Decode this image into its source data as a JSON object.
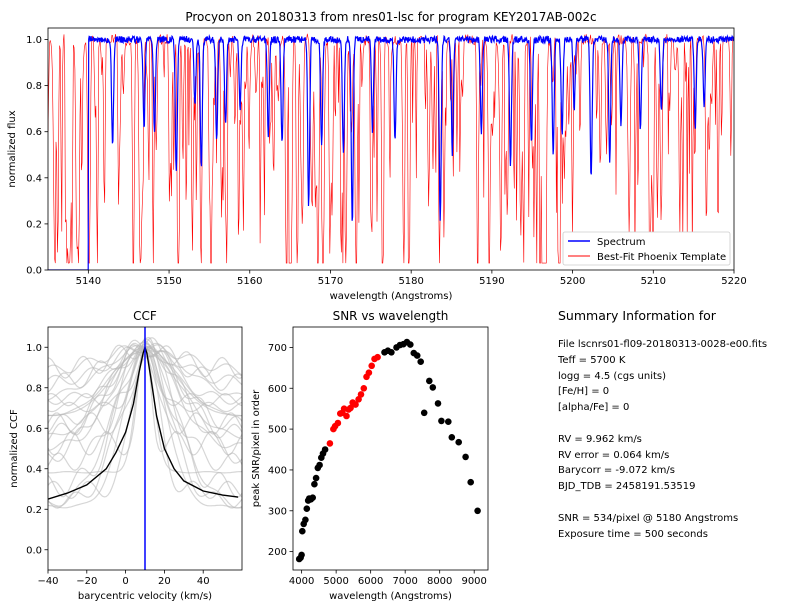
{
  "chart_data": [
    {
      "type": "line",
      "title": "Procyon on 20180313 from nres01-lsc for program KEY2017AB-002c",
      "xlabel": "wavelength (Angstroms)",
      "ylabel": "normalized flux",
      "xlim": [
        5135,
        5220
      ],
      "ylim": [
        0.0,
        1.05
      ],
      "xticks": [
        "5140",
        "5150",
        "5160",
        "5170",
        "5180",
        "5190",
        "5200",
        "5210",
        "5220"
      ],
      "yticks": [
        "0.0",
        "0.2",
        "0.4",
        "0.6",
        "0.8",
        "1.0"
      ],
      "legend_position": "lower-right",
      "series": [
        {
          "name": "Spectrum",
          "color": "#0000ff",
          "notes_data": "flux 0 for wavelength < 5140, ~1.0 continuum with absorption lines",
          "lines": [
            [
              5143.0,
              0.55
            ],
            [
              5146.9,
              0.62
            ],
            [
              5148.2,
              0.6
            ],
            [
              5150.9,
              0.42
            ],
            [
              5153.2,
              0.72
            ],
            [
              5154.0,
              0.45
            ],
            [
              5155.9,
              0.55
            ],
            [
              5157.0,
              0.62
            ],
            [
              5158.8,
              0.7
            ],
            [
              5162.3,
              0.58
            ],
            [
              5164.0,
              0.55
            ],
            [
              5167.3,
              0.28
            ],
            [
              5168.9,
              0.55
            ],
            [
              5171.6,
              0.5
            ],
            [
              5172.7,
              0.2
            ],
            [
              5175.2,
              0.6
            ],
            [
              5178.0,
              0.55
            ],
            [
              5183.6,
              0.2
            ],
            [
              5185.1,
              0.5
            ],
            [
              5188.7,
              0.6
            ],
            [
              5192.3,
              0.45
            ],
            [
              5194.9,
              0.55
            ],
            [
              5197.6,
              0.5
            ],
            [
              5198.7,
              0.58
            ],
            [
              5200.2,
              0.7
            ],
            [
              5202.3,
              0.4
            ],
            [
              5204.6,
              0.48
            ],
            [
              5206.0,
              0.62
            ],
            [
              5208.4,
              0.6
            ],
            [
              5211.0,
              0.68
            ],
            [
              5215.2,
              0.62
            ],
            [
              5216.3,
              0.7
            ]
          ]
        },
        {
          "name": "Best-Fit Phoenix Template",
          "color": "#ff0000",
          "notes_data": "template with many deep narrow absorption lines"
        }
      ]
    },
    {
      "type": "line",
      "title": "CCF",
      "xlabel": "barycentric velocity (km/s)",
      "ylabel": "normalized CCF",
      "xlim": [
        -40,
        60
      ],
      "ylim": [
        -0.1,
        1.1
      ],
      "xticks": [
        "−40",
        "−20",
        "0",
        "20",
        "40"
      ],
      "yticks": [
        "0.0",
        "0.2",
        "0.4",
        "0.6",
        "0.8",
        "1.0"
      ],
      "vline_x": 10.0,
      "vline_color": "#0000ff",
      "main_series": {
        "color": "#000000",
        "x": [
          -40,
          -30,
          -20,
          -10,
          -5,
          0,
          4,
          7,
          9,
          10,
          11,
          13,
          16,
          20,
          25,
          30,
          40,
          50,
          58
        ],
        "y": [
          0.25,
          0.28,
          0.32,
          0.4,
          0.48,
          0.58,
          0.72,
          0.88,
          0.97,
          1.0,
          0.97,
          0.85,
          0.66,
          0.5,
          0.4,
          0.34,
          0.29,
          0.27,
          0.26
        ]
      },
      "background_series_count": 24
    },
    {
      "type": "scatter",
      "title": "SNR vs wavelength",
      "xlabel": "wavelength (Angstroms)",
      "ylabel": "peak SNR/pixel in order",
      "xlim": [
        3750,
        9400
      ],
      "ylim": [
        155,
        750
      ],
      "xticks": [
        "4000",
        "5000",
        "6000",
        "7000",
        "8000",
        "9000"
      ],
      "yticks": [
        "200",
        "300",
        "400",
        "500",
        "600",
        "700"
      ],
      "series": [
        {
          "color": "#000000",
          "points": [
            [
              3930,
              182
            ],
            [
              3970,
              185
            ],
            [
              4000,
              192
            ],
            [
              4020,
              250
            ],
            [
              4060,
              268
            ],
            [
              4110,
              278
            ],
            [
              4150,
              305
            ],
            [
              4190,
              325
            ],
            [
              4220,
              330
            ],
            [
              4270,
              328
            ],
            [
              4320,
              332
            ],
            [
              4370,
              365
            ],
            [
              4420,
              380
            ],
            [
              4470,
              405
            ],
            [
              4520,
              412
            ],
            [
              4570,
              430
            ],
            [
              4620,
              440
            ],
            [
              4680,
              450
            ],
            [
              6400,
              688
            ],
            [
              6500,
              692
            ],
            [
              6600,
              688
            ],
            [
              6750,
              700
            ],
            [
              6850,
              706
            ],
            [
              6950,
              708
            ],
            [
              7050,
              713
            ],
            [
              7150,
              707
            ],
            [
              7250,
              686
            ],
            [
              7350,
              680
            ],
            [
              7450,
              665
            ],
            [
              7550,
              540
            ],
            [
              7700,
              618
            ],
            [
              7800,
              602
            ],
            [
              7950,
              563
            ],
            [
              8050,
              520
            ],
            [
              8250,
              518
            ],
            [
              8350,
              480
            ],
            [
              8550,
              468
            ],
            [
              8750,
              432
            ],
            [
              8900,
              370
            ],
            [
              9100,
              300
            ]
          ]
        },
        {
          "color": "#ff0000",
          "points": [
            [
              4820,
              465
            ],
            [
              4920,
              500
            ],
            [
              4970,
              507
            ],
            [
              5050,
              515
            ],
            [
              5120,
              538
            ],
            [
              5180,
              540
            ],
            [
              5230,
              550
            ],
            [
              5300,
              532
            ],
            [
              5360,
              548
            ],
            [
              5420,
              552
            ],
            [
              5480,
              565
            ],
            [
              5560,
              560
            ],
            [
              5650,
              573
            ],
            [
              5720,
              585
            ],
            [
              5800,
              600
            ],
            [
              5880,
              628
            ],
            [
              5950,
              638
            ],
            [
              6030,
              655
            ],
            [
              6110,
              672
            ],
            [
              6200,
              676
            ]
          ]
        }
      ]
    }
  ],
  "summary": {
    "title": "Summary Information for",
    "lines": [
      "File lscnrs01-fl09-20180313-0028-e00.fits",
      "Teff = 5700 K",
      "logg = 4.5 (cgs units)",
      "[Fe/H] = 0",
      "[alpha/Fe] = 0",
      "",
      "RV = 9.962 km/s",
      "RV error = 0.064 km/s",
      "Barycorr = -9.072 km/s",
      "BJD_TDB = 2458191.53519",
      "",
      "SNR = 534/pixel @ 5180 Angstroms",
      "Exposure time = 500 seconds"
    ]
  }
}
